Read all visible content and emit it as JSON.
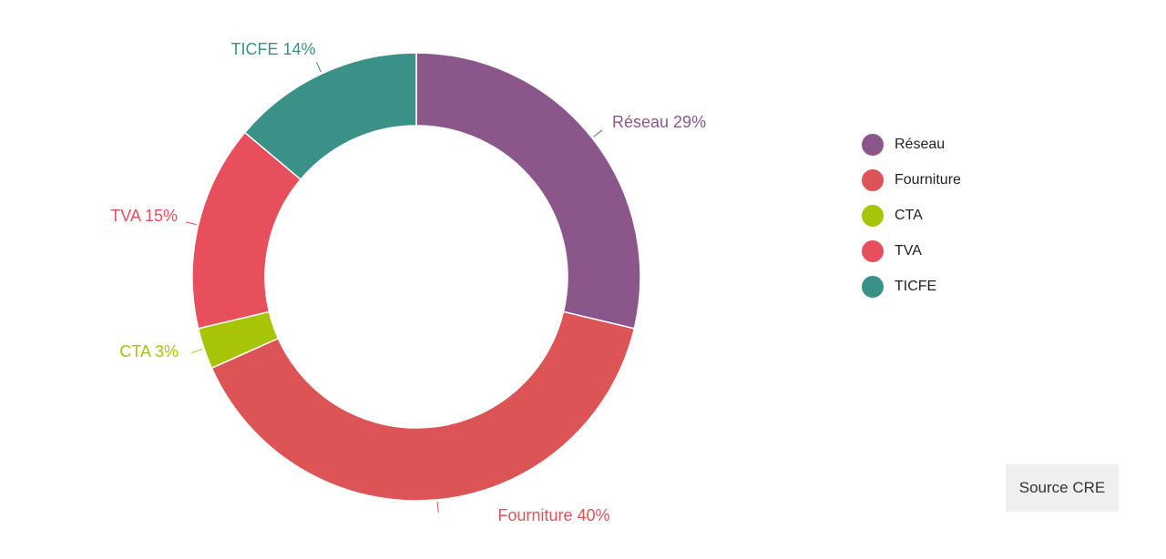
{
  "chart_data": {
    "type": "pie",
    "variant": "donut",
    "slices": [
      {
        "name": "Réseau",
        "value": 29,
        "label": "Réseau 29%",
        "color": "#8B568A"
      },
      {
        "name": "Fourniture",
        "value": 40,
        "label": "Fourniture 40%",
        "color": "#DC5456"
      },
      {
        "name": "CTA",
        "value": 3,
        "label": "CTA 3%",
        "color": "#A8C406"
      },
      {
        "name": "TVA",
        "value": 15,
        "label": "TVA 15%",
        "color": "#E84F5D"
      },
      {
        "name": "TICFE",
        "value": 14,
        "label": "TICFE 14%",
        "color": "#3A9187"
      }
    ],
    "legend_position": "right"
  },
  "legend": {
    "items": [
      {
        "label": "Réseau",
        "color": "#8B568A"
      },
      {
        "label": "Fourniture",
        "color": "#DC5456"
      },
      {
        "label": "CTA",
        "color": "#A8C406"
      },
      {
        "label": "TVA",
        "color": "#E84F5D"
      },
      {
        "label": "TICFE",
        "color": "#3A9187"
      }
    ]
  },
  "source": {
    "label": "Source CRE"
  }
}
